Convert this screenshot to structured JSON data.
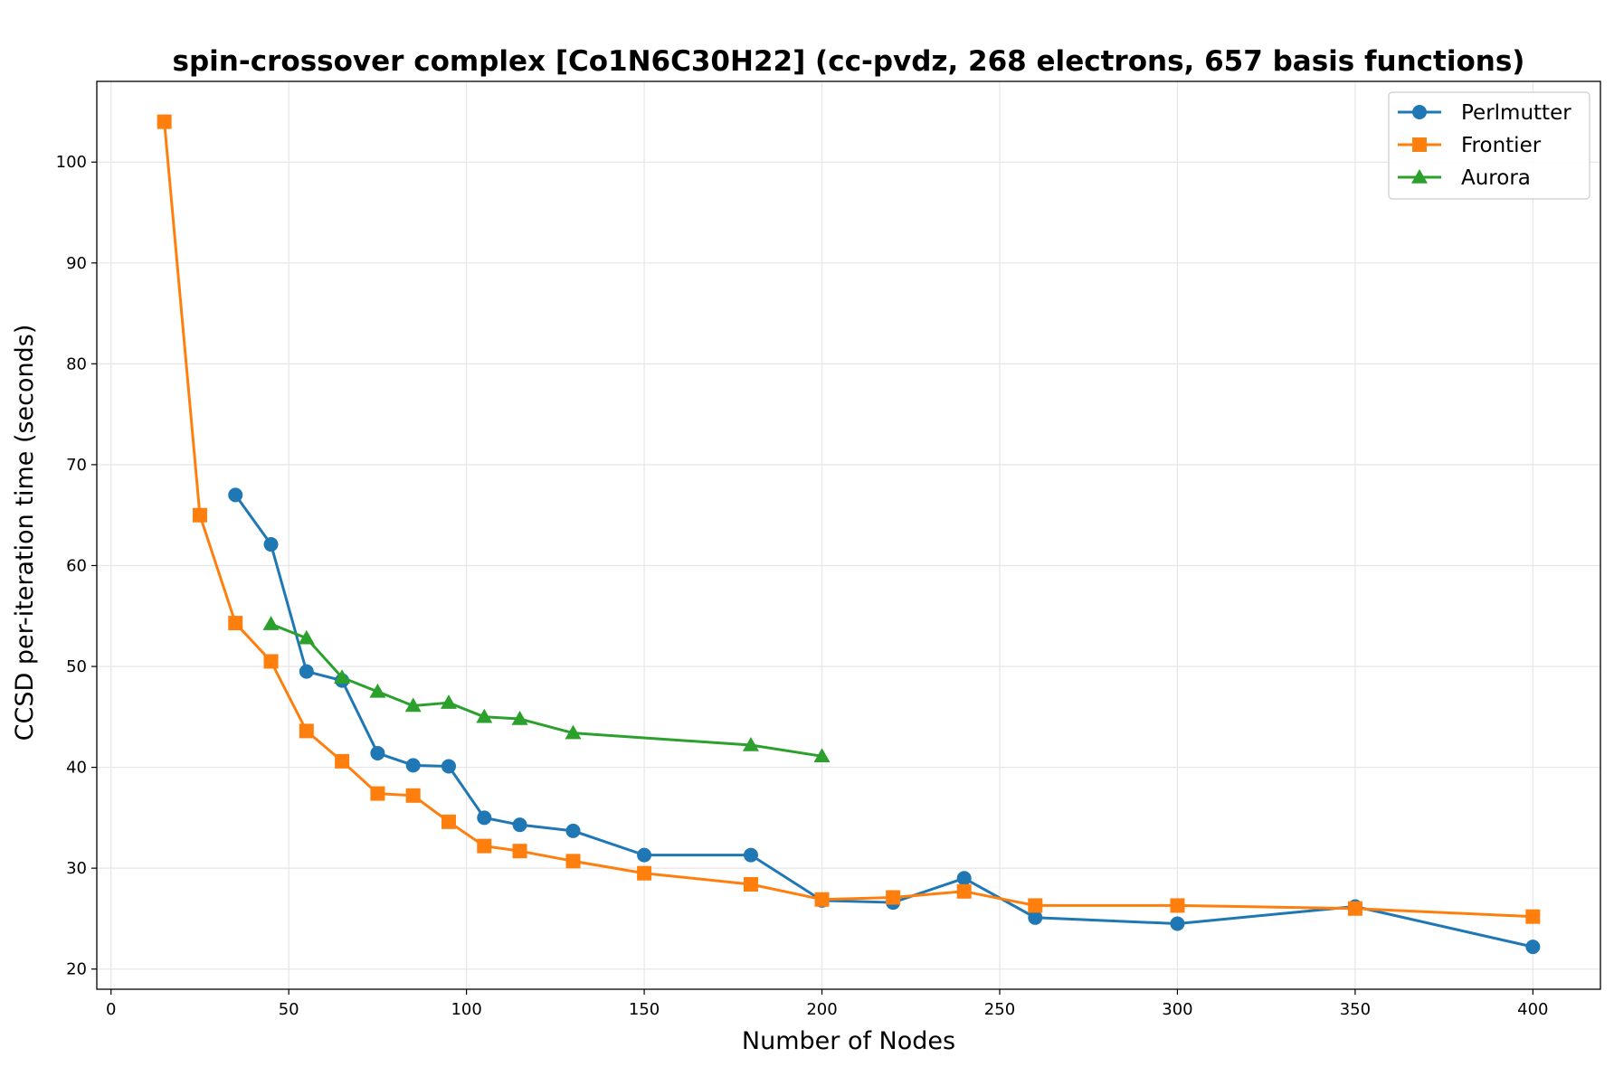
{
  "chart_data": {
    "type": "line",
    "title": "spin-crossover complex [Co1N6C30H22] (cc-pvdz, 268 electrons, 657 basis functions)",
    "xlabel": "Number of Nodes",
    "ylabel": "CCSD per-iteration time (seconds)",
    "xlim": [
      -4,
      419
    ],
    "ylim": [
      18,
      108
    ],
    "xticks": [
      0,
      50,
      100,
      150,
      200,
      250,
      300,
      350,
      400
    ],
    "yticks": [
      20,
      30,
      40,
      50,
      60,
      70,
      80,
      90,
      100
    ],
    "grid": true,
    "legend_position": "top-right",
    "series": [
      {
        "name": "Perlmutter",
        "color": "#1f77b4",
        "marker": "circle",
        "x": [
          35,
          45,
          55,
          65,
          75,
          85,
          95,
          105,
          115,
          130,
          150,
          180,
          200,
          220,
          240,
          260,
          300,
          350,
          400
        ],
        "y": [
          67.0,
          62.1,
          49.5,
          48.6,
          41.4,
          40.2,
          40.1,
          35.0,
          34.3,
          33.7,
          31.3,
          31.3,
          26.8,
          26.6,
          29.0,
          25.1,
          24.5,
          26.2,
          22.2
        ]
      },
      {
        "name": "Frontier",
        "color": "#ff7f0e",
        "marker": "square",
        "x": [
          15,
          25,
          35,
          45,
          55,
          65,
          75,
          85,
          95,
          105,
          115,
          130,
          150,
          180,
          200,
          220,
          240,
          260,
          300,
          350,
          400
        ],
        "y": [
          104.0,
          65.0,
          54.3,
          50.5,
          43.6,
          40.6,
          37.4,
          37.2,
          34.6,
          32.2,
          31.7,
          30.7,
          29.5,
          28.4,
          26.9,
          27.1,
          27.7,
          26.3,
          26.3,
          26.0,
          25.2
        ]
      },
      {
        "name": "Aurora",
        "color": "#2ca02c",
        "marker": "triangle",
        "x": [
          45,
          55,
          65,
          75,
          85,
          95,
          105,
          115,
          130,
          180,
          200
        ],
        "y": [
          54.2,
          52.8,
          48.9,
          47.5,
          46.1,
          46.4,
          45.0,
          44.8,
          43.4,
          42.2,
          41.1
        ]
      }
    ]
  }
}
